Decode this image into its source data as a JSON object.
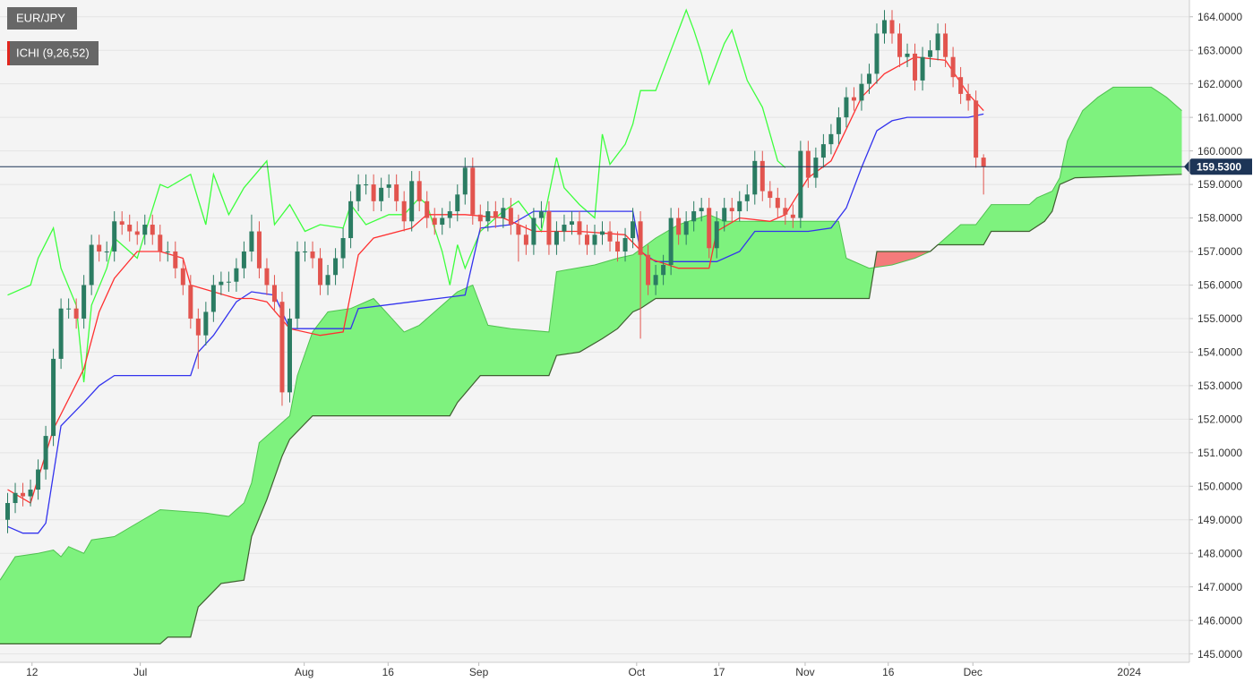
{
  "chart_data": {
    "type": "candlestick",
    "title": "EUR/JPY",
    "indicator": "ICHI (9,26,52)",
    "up_color": "#2b7c62",
    "down_color": "#e2544e",
    "grid": true,
    "xlim": [
      -1,
      155
    ],
    "ylim": [
      144.75,
      164.5
    ],
    "xticks": [
      {
        "value": 3.2,
        "label": "12"
      },
      {
        "value": 17.4,
        "label": "Jul"
      },
      {
        "value": 38.9,
        "label": "Aug"
      },
      {
        "value": 49.9,
        "label": "16"
      },
      {
        "value": 61.8,
        "label": "Sep"
      },
      {
        "value": 82.5,
        "label": "Oct"
      },
      {
        "value": 93.3,
        "label": "17"
      },
      {
        "value": 104.6,
        "label": "Nov"
      },
      {
        "value": 115.5,
        "label": "16"
      },
      {
        "value": 126.6,
        "label": "Dec"
      },
      {
        "value": 147.1,
        "label": "2024"
      }
    ],
    "yticks": [
      {
        "value": 145,
        "label": "145.0000"
      },
      {
        "value": 146,
        "label": "146.0000"
      },
      {
        "value": 147,
        "label": "147.0000"
      },
      {
        "value": 148,
        "label": "148.0000"
      },
      {
        "value": 149,
        "label": "149.0000"
      },
      {
        "value": 150,
        "label": "150.0000"
      },
      {
        "value": 151,
        "label": "151.0000"
      },
      {
        "value": 152,
        "label": "152.0000"
      },
      {
        "value": 153,
        "label": "153.0000"
      },
      {
        "value": 154,
        "label": "154.0000"
      },
      {
        "value": 155,
        "label": "155.0000"
      },
      {
        "value": 156,
        "label": "156.0000"
      },
      {
        "value": 157,
        "label": "157.0000"
      },
      {
        "value": 158,
        "label": "158.0000"
      },
      {
        "value": 159,
        "label": "159.0000"
      },
      {
        "value": 160,
        "label": "160.0000"
      },
      {
        "value": 161,
        "label": "161.0000"
      },
      {
        "value": 162,
        "label": "162.0000"
      },
      {
        "value": 163,
        "label": "163.0000"
      },
      {
        "value": 164,
        "label": "164.0000"
      }
    ],
    "last_price": {
      "value": 159.53,
      "label": "159.5300",
      "color": "#1d3557"
    },
    "x": [
      0,
      1,
      2,
      3,
      4,
      5,
      6,
      7,
      8,
      9,
      10,
      11,
      12,
      13,
      14,
      15,
      16,
      17,
      18,
      19,
      20,
      21,
      22,
      23,
      24,
      25,
      26,
      27,
      28,
      29,
      30,
      31,
      32,
      33,
      34,
      35,
      36,
      37,
      38,
      39,
      40,
      41,
      42,
      43,
      44,
      45,
      46,
      47,
      48,
      49,
      50,
      51,
      52,
      53,
      54,
      55,
      56,
      57,
      58,
      59,
      60,
      61,
      62,
      63,
      64,
      65,
      66,
      67,
      68,
      69,
      70,
      71,
      72,
      73,
      74,
      75,
      76,
      77,
      78,
      79,
      80,
      81,
      82,
      83,
      84,
      85,
      86,
      87,
      88,
      89,
      90,
      91,
      92,
      93,
      94,
      95,
      96,
      97,
      98,
      99,
      100,
      101,
      102,
      103,
      104,
      105,
      106,
      107,
      108,
      109,
      110,
      111,
      112,
      113,
      114,
      115,
      116,
      117,
      118,
      119,
      120,
      121,
      122,
      123,
      124,
      125,
      126,
      127,
      128
    ],
    "open": [
      149.0,
      149.5,
      149.8,
      149.7,
      149.9,
      150.5,
      151.5,
      153.8,
      155.3,
      155.3,
      155.0,
      156.0,
      157.2,
      157.0,
      157.0,
      157.9,
      157.8,
      157.6,
      157.5,
      157.8,
      157.5,
      157.0,
      157.0,
      156.5,
      156.0,
      155.0,
      154.5,
      155.2,
      156.0,
      156.1,
      156.1,
      156.5,
      157.0,
      157.6,
      156.5,
      156.0,
      155.5,
      152.8,
      155.0,
      157.0,
      157.0,
      156.8,
      156.0,
      156.3,
      156.8,
      157.4,
      158.5,
      159.0,
      159.0,
      158.5,
      158.9,
      159.0,
      158.5,
      157.9,
      159.1,
      158.5,
      158.0,
      157.8,
      158.0,
      158.2,
      158.7,
      159.5,
      158.1,
      157.9,
      158.2,
      158.0,
      158.3,
      157.8,
      157.5,
      157.2,
      158.0,
      158.2,
      157.2,
      157.6,
      157.8,
      157.9,
      157.5,
      157.2,
      157.5,
      157.6,
      157.3,
      157.0,
      157.4,
      157.9,
      156.9,
      156.0,
      156.3,
      156.6,
      158.0,
      157.5,
      157.9,
      158.2,
      158.3,
      157.1,
      157.9,
      158.3,
      158.2,
      158.5,
      158.7,
      159.7,
      158.8,
      158.6,
      158.3,
      158.1,
      158.0,
      160.0,
      159.2,
      159.8,
      160.2,
      160.5,
      161.0,
      161.6,
      161.5,
      162.0,
      162.3,
      163.5,
      163.9,
      163.5,
      162.8,
      162.9,
      162.1,
      162.8,
      163.0,
      163.5,
      162.8,
      162.2,
      161.7,
      161.5,
      159.8
    ],
    "high": [
      149.8,
      150.1,
      150.1,
      150.2,
      150.8,
      151.8,
      154.1,
      155.6,
      155.6,
      155.6,
      156.3,
      157.5,
      157.5,
      157.3,
      158.2,
      158.2,
      158.1,
      157.9,
      158.1,
      158.1,
      157.8,
      157.3,
      157.3,
      156.8,
      156.3,
      155.3,
      155.5,
      156.3,
      156.4,
      156.4,
      156.8,
      157.3,
      158.1,
      157.9,
      156.8,
      156.3,
      155.8,
      155.3,
      157.3,
      157.3,
      157.3,
      157.1,
      156.6,
      157.1,
      157.7,
      158.8,
      159.3,
      159.3,
      159.3,
      159.2,
      159.3,
      159.3,
      158.8,
      159.4,
      159.4,
      158.8,
      158.3,
      158.3,
      158.5,
      159.0,
      159.8,
      159.8,
      158.4,
      158.5,
      158.5,
      158.6,
      158.6,
      158.1,
      157.8,
      158.3,
      158.5,
      158.5,
      157.9,
      158.1,
      158.2,
      158.2,
      157.8,
      157.8,
      157.9,
      157.9,
      157.6,
      157.7,
      158.3,
      158.2,
      157.2,
      156.6,
      156.9,
      158.3,
      158.3,
      158.2,
      158.5,
      158.6,
      158.6,
      158.2,
      158.6,
      158.6,
      158.8,
      159.0,
      160.0,
      160.0,
      159.1,
      158.9,
      158.6,
      158.4,
      160.3,
      160.3,
      160.1,
      160.5,
      160.8,
      161.3,
      161.9,
      161.9,
      162.3,
      162.6,
      163.8,
      164.2,
      164.2,
      163.8,
      163.2,
      163.2,
      163.1,
      163.3,
      163.8,
      163.8,
      163.1,
      162.5,
      162.0,
      161.8,
      159.9
    ],
    "low": [
      148.6,
      149.2,
      149.4,
      149.4,
      149.6,
      150.2,
      151.2,
      153.5,
      155.0,
      154.7,
      154.7,
      155.7,
      156.7,
      156.7,
      156.7,
      157.5,
      157.3,
      157.2,
      157.2,
      157.2,
      156.7,
      156.7,
      156.2,
      155.7,
      154.7,
      153.5,
      154.2,
      154.9,
      155.7,
      155.8,
      155.8,
      156.2,
      156.7,
      156.2,
      155.7,
      155.2,
      152.4,
      152.5,
      154.7,
      156.7,
      156.5,
      155.7,
      155.7,
      156.0,
      156.5,
      157.1,
      158.2,
      158.7,
      158.2,
      158.2,
      158.6,
      158.2,
      157.6,
      157.6,
      158.2,
      157.7,
      157.5,
      157.5,
      157.7,
      157.9,
      158.4,
      157.8,
      157.6,
      157.6,
      157.7,
      157.7,
      157.5,
      156.7,
      156.9,
      156.9,
      157.7,
      156.9,
      156.9,
      157.3,
      157.5,
      157.2,
      156.9,
      156.9,
      157.2,
      157.0,
      156.7,
      156.7,
      157.1,
      154.4,
      155.7,
      155.7,
      156.0,
      156.3,
      157.2,
      157.2,
      157.6,
      157.9,
      156.8,
      156.8,
      157.6,
      157.9,
      157.9,
      158.2,
      158.4,
      158.5,
      158.3,
      158.0,
      157.8,
      157.7,
      157.7,
      158.9,
      158.9,
      159.5,
      159.9,
      160.2,
      160.7,
      161.2,
      161.2,
      161.7,
      162.0,
      163.2,
      163.2,
      162.5,
      162.5,
      161.8,
      161.8,
      162.5,
      162.7,
      162.5,
      161.9,
      161.4,
      161.2,
      159.5,
      158.7
    ],
    "close": [
      149.5,
      149.8,
      149.7,
      149.9,
      150.5,
      151.5,
      153.8,
      155.3,
      155.3,
      155.0,
      156.0,
      157.2,
      157.0,
      157.0,
      157.9,
      157.8,
      157.6,
      157.5,
      157.8,
      157.5,
      157.0,
      157.0,
      156.5,
      156.0,
      155.0,
      154.5,
      155.2,
      156.0,
      156.1,
      156.1,
      156.5,
      157.0,
      157.6,
      156.5,
      156.0,
      155.5,
      152.8,
      155.0,
      157.0,
      157.0,
      156.8,
      156.0,
      156.3,
      156.8,
      157.4,
      158.5,
      159.0,
      159.0,
      158.5,
      158.9,
      159.0,
      158.5,
      157.9,
      159.1,
      158.5,
      158.0,
      157.8,
      158.0,
      158.2,
      158.7,
      159.5,
      158.1,
      157.9,
      158.2,
      158.0,
      158.3,
      157.8,
      157.5,
      157.2,
      158.0,
      158.2,
      157.2,
      157.6,
      157.8,
      157.9,
      157.5,
      157.2,
      157.5,
      157.6,
      157.3,
      157.0,
      157.4,
      157.9,
      156.9,
      156.0,
      156.3,
      156.6,
      158.0,
      157.5,
      157.9,
      158.2,
      158.3,
      157.1,
      157.9,
      158.3,
      158.2,
      158.5,
      158.7,
      159.7,
      158.8,
      158.6,
      158.3,
      158.1,
      158.0,
      160.0,
      159.2,
      159.8,
      160.2,
      160.5,
      161.0,
      161.6,
      161.5,
      162.0,
      162.3,
      163.5,
      163.9,
      163.5,
      162.8,
      162.9,
      162.1,
      162.8,
      163.0,
      163.5,
      162.8,
      162.2,
      161.7,
      161.5,
      159.8,
      159.53
    ],
    "overlays": [
      {
        "type": "cloud",
        "up_color": "#7ef27e",
        "down_color": "#f47b7b",
        "span_a": {
          "color": "#4fc24f",
          "x": [
            -1,
            1,
            4,
            6,
            7,
            8,
            10,
            11,
            14,
            17,
            20,
            26,
            29,
            31,
            32,
            33,
            35,
            37,
            38,
            40,
            42,
            45,
            48,
            50,
            52,
            54,
            57,
            59,
            61,
            63,
            66,
            71,
            72,
            77,
            80,
            82,
            85,
            88,
            92,
            94,
            109,
            110,
            113,
            116,
            119,
            121,
            123,
            125,
            127,
            129,
            134,
            135,
            137,
            138,
            139,
            141,
            143,
            145,
            150,
            152,
            154
          ],
          "values": [
            147.2,
            147.9,
            148.0,
            148.1,
            147.9,
            148.2,
            148.0,
            148.4,
            148.5,
            148.9,
            149.3,
            149.2,
            149.1,
            149.5,
            150.1,
            151.3,
            151.7,
            152.1,
            153.3,
            154.6,
            155.2,
            155.3,
            155.6,
            155.1,
            154.6,
            154.8,
            155.4,
            155.8,
            156.0,
            154.8,
            154.7,
            154.6,
            156.4,
            156.6,
            156.8,
            156.9,
            157.4,
            157.8,
            158.1,
            157.9,
            157.9,
            156.8,
            156.5,
            156.6,
            156.8,
            157.0,
            157.4,
            157.8,
            157.8,
            158.4,
            158.4,
            158.6,
            158.8,
            159.2,
            160.3,
            161.2,
            161.6,
            161.9,
            161.9,
            161.6,
            161.2
          ]
        },
        "span_b": {
          "color": "#3f5f30",
          "x": [
            -1,
            20,
            21,
            24,
            25,
            28,
            31,
            32,
            34,
            36,
            37,
            40,
            58,
            59,
            62,
            71,
            72,
            75,
            78,
            80,
            82,
            83,
            85,
            113,
            114,
            121,
            122,
            128,
            129,
            134,
            136,
            137,
            138,
            140,
            154
          ],
          "values": [
            145.3,
            145.3,
            145.5,
            145.5,
            146.4,
            147.1,
            147.2,
            148.5,
            149.6,
            150.9,
            151.4,
            152.1,
            152.1,
            152.5,
            153.3,
            153.3,
            153.9,
            154.0,
            154.4,
            154.7,
            155.2,
            155.3,
            155.6,
            155.6,
            157.0,
            157.0,
            157.2,
            157.2,
            157.6,
            157.6,
            157.9,
            158.2,
            159.0,
            159.2,
            159.3
          ]
        }
      },
      {
        "type": "line",
        "color": "#3dff3d",
        "x": [
          0,
          3,
          4,
          6,
          7,
          9,
          10,
          11,
          13,
          14,
          17,
          20,
          21,
          24,
          26,
          27,
          29,
          31,
          34,
          35,
          37,
          39,
          41,
          44,
          45,
          47,
          50,
          52,
          54,
          55,
          57,
          58,
          59,
          60,
          62,
          65,
          67,
          70,
          72,
          73,
          75,
          77,
          78,
          79,
          81,
          82,
          83,
          85,
          87,
          89,
          90,
          91,
          92,
          94,
          95,
          97,
          99,
          101,
          102
        ],
        "values": [
          155.7,
          156.0,
          156.8,
          157.7,
          156.5,
          155.4,
          153.1,
          155.4,
          156.5,
          157.4,
          156.8,
          159.0,
          158.9,
          159.3,
          157.8,
          159.3,
          158.1,
          158.9,
          159.7,
          157.8,
          158.4,
          157.6,
          157.8,
          157.7,
          158.4,
          157.8,
          158.1,
          158.1,
          158.6,
          158.4,
          157.0,
          156.0,
          157.2,
          156.5,
          157.6,
          158.2,
          158.5,
          157.6,
          159.8,
          158.9,
          158.4,
          158.0,
          160.5,
          159.6,
          160.2,
          160.8,
          161.8,
          161.8,
          163.0,
          164.2,
          163.6,
          162.9,
          162.0,
          163.2,
          163.6,
          162.1,
          161.3,
          159.7,
          159.5
        ]
      },
      {
        "type": "line",
        "color": "#3333ee",
        "x": [
          0,
          2,
          4,
          5,
          7,
          10,
          12,
          14,
          20,
          24,
          25,
          27,
          30,
          32,
          35,
          37,
          45,
          46,
          53,
          60,
          62,
          66,
          69,
          82,
          83,
          85,
          93,
          96,
          98,
          105,
          108,
          110,
          112,
          114,
          116,
          118,
          126,
          128
        ],
        "values": [
          148.8,
          148.6,
          148.6,
          148.9,
          151.8,
          152.5,
          153.0,
          153.3,
          153.3,
          153.3,
          154.0,
          154.5,
          155.5,
          155.8,
          155.7,
          154.7,
          154.7,
          155.3,
          155.5,
          155.7,
          157.7,
          157.8,
          158.2,
          158.2,
          157.0,
          156.7,
          156.7,
          157.0,
          157.6,
          157.6,
          157.7,
          158.3,
          159.5,
          160.6,
          160.9,
          161.0,
          161.0,
          161.1
        ]
      },
      {
        "type": "line",
        "color": "#ff3030",
        "x": [
          0,
          3,
          6,
          10,
          12,
          14,
          17,
          20,
          23,
          24,
          27,
          30,
          32,
          34,
          37,
          41,
          44,
          46,
          48,
          53,
          55,
          60,
          65,
          69,
          75,
          81,
          84,
          88,
          92,
          93,
          96,
          100,
          102,
          105,
          108,
          112,
          115,
          119,
          123,
          126,
          128
        ],
        "values": [
          149.9,
          149.5,
          151.7,
          153.5,
          155.2,
          156.2,
          157.0,
          157.0,
          156.8,
          156.0,
          155.8,
          155.6,
          155.6,
          155.5,
          154.7,
          154.5,
          154.6,
          156.9,
          157.4,
          157.7,
          158.1,
          158.1,
          158.0,
          157.6,
          157.6,
          157.5,
          156.8,
          156.5,
          156.5,
          157.6,
          158.0,
          157.9,
          158.1,
          159.2,
          159.7,
          161.6,
          162.3,
          162.8,
          162.7,
          161.7,
          161.2
        ]
      }
    ]
  }
}
